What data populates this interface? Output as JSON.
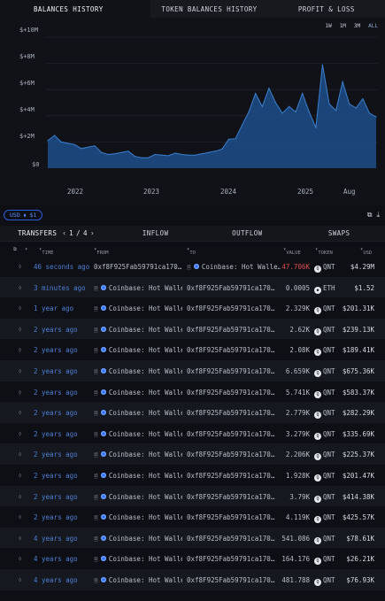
{
  "top_tabs": [
    "BALANCES HISTORY",
    "TOKEN BALANCES HISTORY",
    "PROFIT & LOSS"
  ],
  "ranges": [
    "1W",
    "1M",
    "3M",
    "ALL"
  ],
  "colors": {
    "accent": "#2c5bd9",
    "chart_fill": "#1d4f8a",
    "chart_line": "#3a7fd0",
    "negative": "#e05252"
  },
  "chart_data": {
    "type": "area",
    "y_ticks": [
      "$+10M",
      "$+8M",
      "$+6M",
      "$+4M",
      "$+2M",
      "$0"
    ],
    "x_ticks": [
      "2022",
      "2023",
      "2024",
      "2025",
      "Aug"
    ],
    "ylim": [
      0,
      10000000
    ],
    "x": [
      "2021-09",
      "2021-10",
      "2021-11",
      "2021-12",
      "2022-01",
      "2022-02",
      "2022-03",
      "2022-04",
      "2022-05",
      "2022-06",
      "2022-07",
      "2022-08",
      "2022-09",
      "2022-10",
      "2022-11",
      "2022-12",
      "2023-01",
      "2023-02",
      "2023-03",
      "2023-04",
      "2023-05",
      "2023-06",
      "2023-07",
      "2023-08",
      "2023-09",
      "2023-10",
      "2023-11",
      "2023-12",
      "2024-01",
      "2024-02",
      "2024-03",
      "2024-04",
      "2024-05",
      "2024-06",
      "2024-07",
      "2024-08",
      "2024-09",
      "2024-10",
      "2024-11",
      "2024-12",
      "2025-01",
      "2025-02",
      "2025-03",
      "2025-04",
      "2025-05",
      "2025-06",
      "2025-07",
      "2025-08",
      "2025-09",
      "2025-10"
    ],
    "values": [
      2100000,
      2500000,
      2000000,
      1900000,
      1800000,
      1500000,
      1600000,
      1700000,
      1200000,
      1050000,
      1100000,
      1200000,
      1300000,
      900000,
      800000,
      800000,
      1050000,
      1000000,
      950000,
      1150000,
      1050000,
      1000000,
      1000000,
      1100000,
      1200000,
      1300000,
      1450000,
      2200000,
      2250000,
      3300000,
      4300000,
      5700000,
      4700000,
      6100000,
      5000000,
      4200000,
      4700000,
      4300000,
      5700000,
      4300000,
      3100000,
      7900000,
      4900000,
      4400000,
      6600000,
      4900000,
      4600000,
      5300000,
      4200000,
      3900000
    ],
    "grid": true,
    "legend": "none"
  },
  "currency_pill": "USD ⬧ $1",
  "sub_tabs": {
    "transfers": "TRANSFERS",
    "page_current": "1",
    "page_total": "4",
    "inflow": "INFLOW",
    "outflow": "OUTFLOW",
    "swaps": "SWAPS"
  },
  "columns": {
    "time": "TIME",
    "from": "FROM",
    "to": "TO",
    "value": "VALUE",
    "token": "TOKEN",
    "usd": "USD"
  },
  "rows": [
    {
      "time": "46 seconds ago",
      "from": "0xf8F925Fab59791ca170…",
      "to": "Coinbase: Hot Walle…",
      "value": "47.706K",
      "token": "QNT",
      "usd": "$4.29M",
      "neg": true,
      "from_entity": false
    },
    {
      "time": "3 minutes ago",
      "from": "Coinbase: Hot Walle…",
      "to": "0xf8F925Fab59791ca170…",
      "value": "0.0005",
      "token": "ETH",
      "usd": "$1.52",
      "neg": false,
      "from_entity": true
    },
    {
      "time": "1 year ago",
      "from": "Coinbase: Hot Walle…",
      "to": "0xf8F925Fab59791ca170…",
      "value": "2.329K",
      "token": "QNT",
      "usd": "$201.31K",
      "neg": false,
      "from_entity": true
    },
    {
      "time": "2 years ago",
      "from": "Coinbase: Hot Walle…",
      "to": "0xf8F925Fab59791ca170…",
      "value": "2.62K",
      "token": "QNT",
      "usd": "$239.13K",
      "neg": false,
      "from_entity": true
    },
    {
      "time": "2 years ago",
      "from": "Coinbase: Hot Walle…",
      "to": "0xf8F925Fab59791ca170…",
      "value": "2.08K",
      "token": "QNT",
      "usd": "$189.41K",
      "neg": false,
      "from_entity": true
    },
    {
      "time": "2 years ago",
      "from": "Coinbase: Hot Walle…",
      "to": "0xf8F925Fab59791ca170…",
      "value": "6.659K",
      "token": "QNT",
      "usd": "$675.36K",
      "neg": false,
      "from_entity": true
    },
    {
      "time": "2 years ago",
      "from": "Coinbase: Hot Walle…",
      "to": "0xf8F925Fab59791ca170…",
      "value": "5.741K",
      "token": "QNT",
      "usd": "$583.37K",
      "neg": false,
      "from_entity": true
    },
    {
      "time": "2 years ago",
      "from": "Coinbase: Hot Walle…",
      "to": "0xf8F925Fab59791ca170…",
      "value": "2.779K",
      "token": "QNT",
      "usd": "$282.29K",
      "neg": false,
      "from_entity": true
    },
    {
      "time": "2 years ago",
      "from": "Coinbase: Hot Walle…",
      "to": "0xf8F925Fab59791ca170…",
      "value": "3.279K",
      "token": "QNT",
      "usd": "$335.69K",
      "neg": false,
      "from_entity": true
    },
    {
      "time": "2 years ago",
      "from": "Coinbase: Hot Walle…",
      "to": "0xf8F925Fab59791ca170…",
      "value": "2.206K",
      "token": "QNT",
      "usd": "$225.37K",
      "neg": false,
      "from_entity": true
    },
    {
      "time": "2 years ago",
      "from": "Coinbase: Hot Walle…",
      "to": "0xf8F925Fab59791ca170…",
      "value": "1.928K",
      "token": "QNT",
      "usd": "$201.47K",
      "neg": false,
      "from_entity": true
    },
    {
      "time": "2 years ago",
      "from": "Coinbase: Hot Walle…",
      "to": "0xf8F925Fab59791ca170…",
      "value": "3.79K",
      "token": "QNT",
      "usd": "$414.38K",
      "neg": false,
      "from_entity": true
    },
    {
      "time": "2 years ago",
      "from": "Coinbase: Hot Walle…",
      "to": "0xf8F925Fab59791ca170…",
      "value": "4.119K",
      "token": "QNT",
      "usd": "$425.57K",
      "neg": false,
      "from_entity": true
    },
    {
      "time": "4 years ago",
      "from": "Coinbase: Hot Walle…",
      "to": "0xf8F925Fab59791ca170…",
      "value": "541.086",
      "token": "QNT",
      "usd": "$78.61K",
      "neg": false,
      "from_entity": true
    },
    {
      "time": "4 years ago",
      "from": "Coinbase: Hot Walle…",
      "to": "0xf8F925Fab59791ca170…",
      "value": "164.176",
      "token": "QNT",
      "usd": "$26.21K",
      "neg": false,
      "from_entity": true
    },
    {
      "time": "4 years ago",
      "from": "Coinbase: Hot Walle…",
      "to": "0xf8F925Fab59791ca170…",
      "value": "481.788",
      "token": "QNT",
      "usd": "$76.93K",
      "neg": false,
      "from_entity": true
    }
  ]
}
